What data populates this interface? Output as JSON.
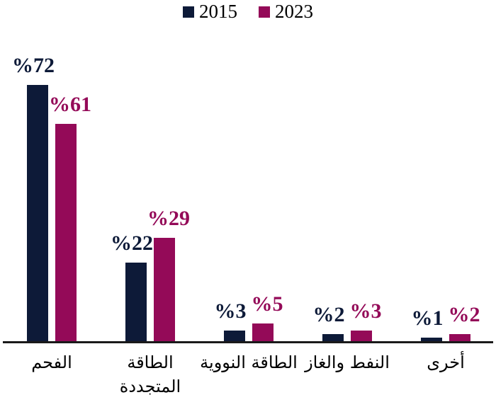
{
  "chart_data": {
    "type": "bar",
    "title": "",
    "xlabel": "",
    "ylabel": "",
    "ylim": [
      0,
      80
    ],
    "grid": false,
    "legend_position": "top-center",
    "axis_color": "#1a1a1a",
    "background_color": "#ffffff",
    "categories": [
      "الفحم",
      "الطاقة المتجددة",
      "الطاقة النووية",
      "النفط والغاز",
      "أخرى"
    ],
    "category_lines": [
      [
        "الفحم"
      ],
      [
        "الطاقة",
        "المتجددة"
      ],
      [
        "الطاقة النووية"
      ],
      [
        "النفط والغاز"
      ],
      [
        "أخرى"
      ]
    ],
    "series": [
      {
        "name": "2015",
        "color": "#0d1a38",
        "values": [
          72,
          22,
          3,
          2,
          1
        ],
        "labels": [
          "%72",
          "%22",
          "%3",
          "%2",
          "%1"
        ]
      },
      {
        "name": "2023",
        "color": "#940a58",
        "values": [
          61,
          29,
          5,
          3,
          2
        ],
        "labels": [
          "%61",
          "%29",
          "%5",
          "%3",
          "%2"
        ]
      }
    ],
    "value_label_format": "percent-before-number"
  }
}
